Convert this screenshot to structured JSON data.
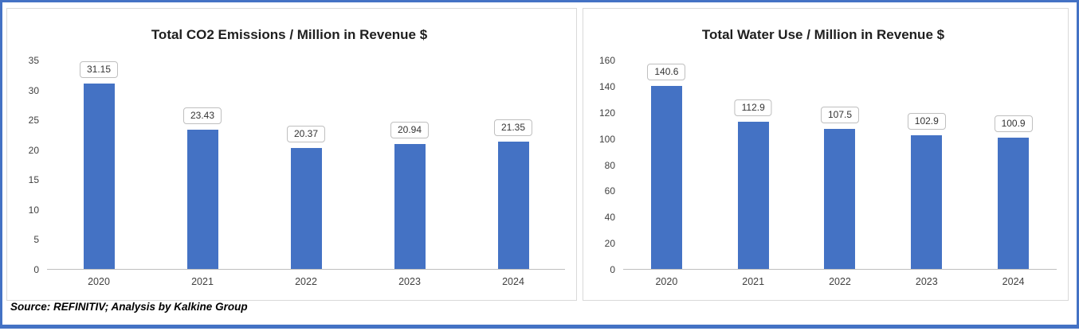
{
  "source_note": "Source: REFINITIV; Analysis by Kalkine Group",
  "colors": {
    "bar": "#4472C4",
    "outer_border": "#4472C4",
    "panel_border": "#D9D9D9",
    "axis_line": "#BFBFBF"
  },
  "chart_data": [
    {
      "type": "bar",
      "title": "Total CO2 Emissions / Million in Revenue $",
      "categories": [
        "2020",
        "2021",
        "2022",
        "2023",
        "2024"
      ],
      "values": [
        31.15,
        23.43,
        20.37,
        20.94,
        21.35
      ],
      "data_labels": [
        "31.15",
        "23.43",
        "20.37",
        "20.94",
        "21.35"
      ],
      "xlabel": "",
      "ylabel": "",
      "ylim": [
        0,
        35
      ],
      "y_ticks": [
        0,
        5,
        10,
        15,
        20,
        25,
        30,
        35
      ],
      "grid": false,
      "legend_position": "none"
    },
    {
      "type": "bar",
      "title": "Total Water Use / Million in Revenue $",
      "categories": [
        "2020",
        "2021",
        "2022",
        "2023",
        "2024"
      ],
      "values": [
        140.6,
        112.9,
        107.5,
        102.9,
        100.9
      ],
      "data_labels": [
        "140.6",
        "112.9",
        "107.5",
        "102.9",
        "100.9"
      ],
      "xlabel": "",
      "ylabel": "",
      "ylim": [
        0,
        160
      ],
      "y_ticks": [
        0,
        20,
        40,
        60,
        80,
        100,
        120,
        140,
        160
      ],
      "grid": false,
      "legend_position": "none"
    }
  ]
}
